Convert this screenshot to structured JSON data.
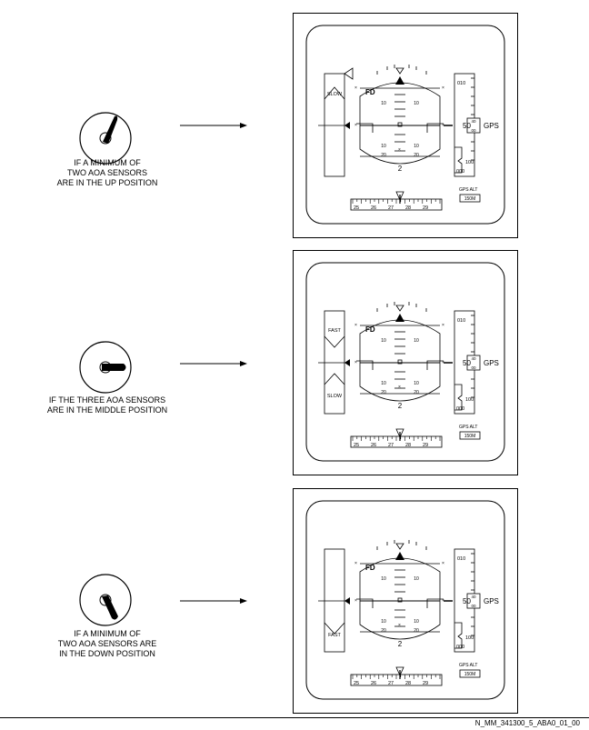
{
  "rows": [
    {
      "caption": "IF A MINIMUM OF\nTWO AOA SENSORS\nARE IN THE UP POSITION",
      "knob_position": "up",
      "tape_labels": [
        "SLOW"
      ]
    },
    {
      "caption": "IF THE THREE AOA SENSORS\nARE IN THE MIDDLE POSITION",
      "knob_position": "middle",
      "tape_labels": [
        "FAST",
        "SLOW"
      ]
    },
    {
      "caption": "IF A MINIMUM OF\nTWO AOA SENSORS ARE\nIN THE DOWN POSITION",
      "knob_position": "down",
      "tape_labels": [
        "FAST"
      ]
    }
  ],
  "display": {
    "fd_label": "FD",
    "pitch_labels": [
      "10",
      "10",
      "10",
      "10",
      "20",
      "20"
    ],
    "bank_value": "2",
    "gps_label": "GPS",
    "alt_top": "010",
    "alt_current": "50",
    "alt_current_small_top": "40",
    "alt_current_small_bottom": "00",
    "alt_mid": "100",
    "alt_bottom": "000",
    "gps_alt_label": "GPS ALT",
    "gps_alt_box": "150M",
    "heading_ticks": [
      "25",
      "26",
      "27",
      "28",
      "29"
    ]
  },
  "reference": "N_MM_341300_5_ABA0_01_00"
}
